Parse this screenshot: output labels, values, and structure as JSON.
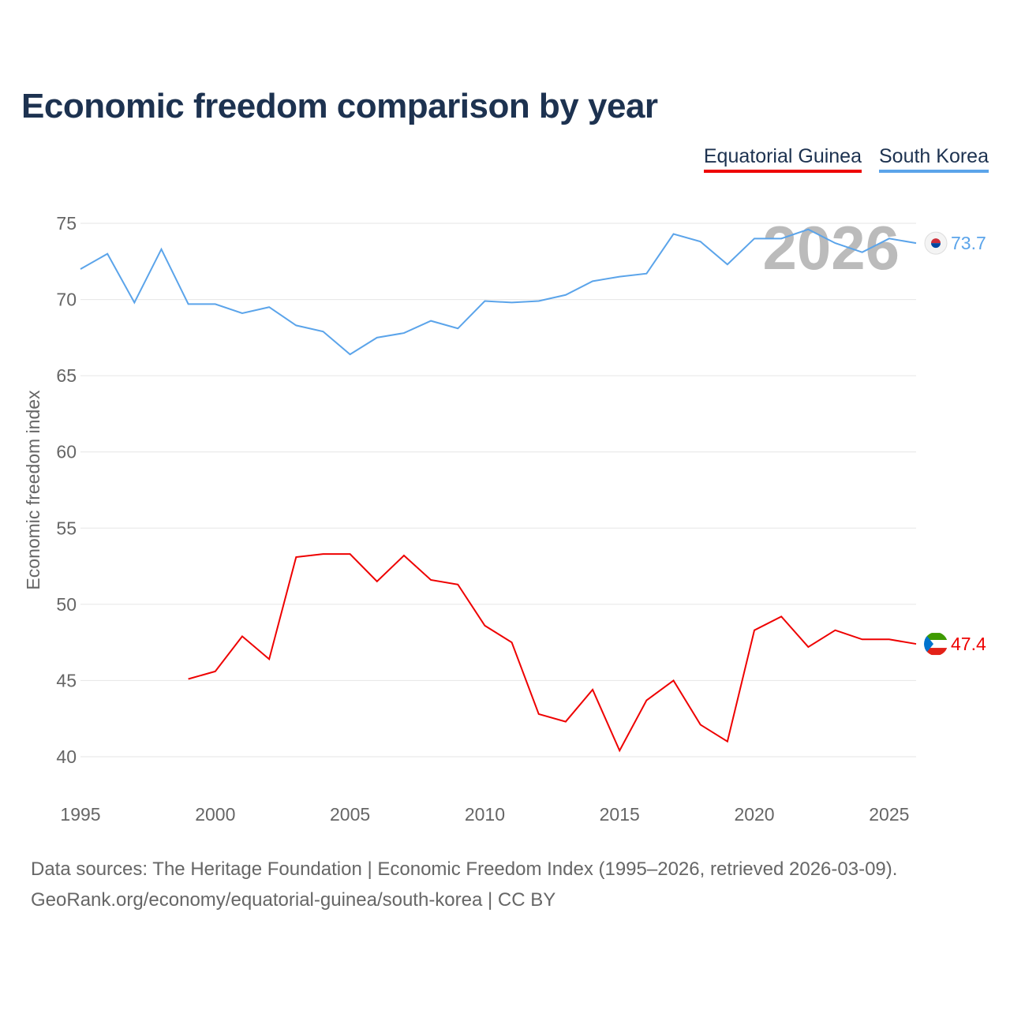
{
  "title": "Economic freedom comparison by year",
  "footer": {
    "line1": "Data sources: The Heritage Foundation | Economic Freedom Index (1995–2026, retrieved 2026-03-09).",
    "line2": "GeoRank.org/economy/equatorial-guinea/south-korea | CC BY"
  },
  "chart_data": {
    "type": "line",
    "title": "Economic freedom comparison by year",
    "xlabel": "",
    "ylabel": "Economic freedom index",
    "xlim": [
      1995,
      2026
    ],
    "ylim": [
      40,
      75
    ],
    "yticks": [
      "40",
      "45",
      "50",
      "55",
      "60",
      "65",
      "70",
      "75"
    ],
    "xticks": [
      "1995",
      "2000",
      "2005",
      "2010",
      "2015",
      "2020",
      "2025"
    ],
    "year_watermark": "2026",
    "legend_placement": "top-right",
    "series": [
      {
        "name": "Equatorial Guinea",
        "color": "#ee0000",
        "end_label": "47.4",
        "flag": "equatorial-guinea-flag-icon",
        "x": [
          1999,
          2000,
          2001,
          2002,
          2003,
          2004,
          2005,
          2006,
          2007,
          2008,
          2009,
          2010,
          2011,
          2012,
          2013,
          2014,
          2015,
          2016,
          2017,
          2018,
          2019,
          2020,
          2021,
          2022,
          2023,
          2024,
          2025,
          2026
        ],
        "values": [
          45.1,
          45.6,
          47.9,
          46.4,
          53.1,
          53.3,
          53.3,
          51.5,
          53.2,
          51.6,
          51.3,
          48.6,
          47.5,
          42.8,
          42.3,
          44.4,
          40.4,
          43.7,
          45.0,
          42.1,
          41.0,
          48.3,
          49.2,
          47.2,
          48.3,
          47.7,
          47.7,
          47.4
        ]
      },
      {
        "name": "South Korea",
        "color": "#5ba4ea",
        "end_label": "73.7",
        "flag": "south-korea-flag-icon",
        "x": [
          1995,
          1996,
          1997,
          1998,
          1999,
          2000,
          2001,
          2002,
          2003,
          2004,
          2005,
          2006,
          2007,
          2008,
          2009,
          2010,
          2011,
          2012,
          2013,
          2014,
          2015,
          2016,
          2017,
          2018,
          2019,
          2020,
          2021,
          2022,
          2023,
          2024,
          2025,
          2026
        ],
        "values": [
          72.0,
          73.0,
          69.8,
          73.3,
          69.7,
          69.7,
          69.1,
          69.5,
          68.3,
          67.9,
          66.4,
          67.5,
          67.8,
          68.6,
          68.1,
          69.9,
          69.8,
          69.9,
          70.3,
          71.2,
          71.5,
          71.7,
          74.3,
          73.8,
          72.3,
          74.0,
          74.0,
          74.6,
          73.7,
          73.1,
          74.0,
          73.7
        ]
      }
    ]
  }
}
